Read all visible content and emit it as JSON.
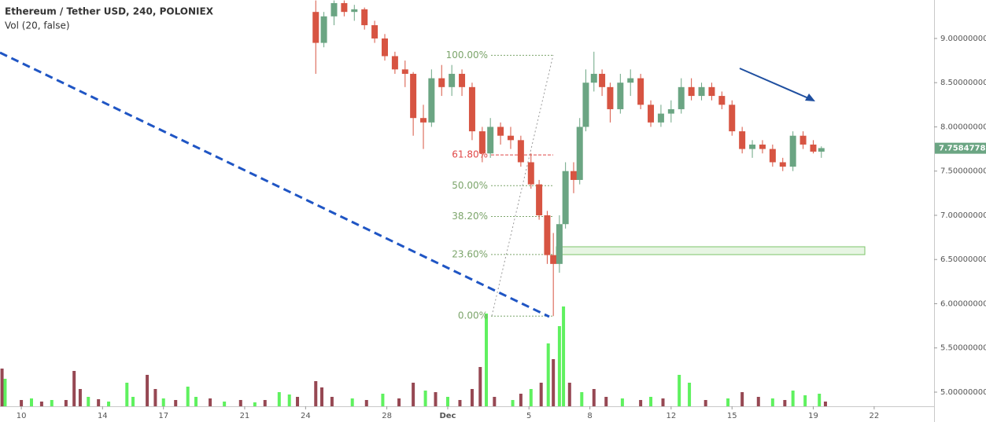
{
  "chart_data": {
    "type": "candlestick",
    "title": "Ethereum / Tether USD, 240, POLONIEX",
    "subtitle": "Vol (20, false)",
    "up_color": "#6ba583",
    "down_color": "#d75442",
    "ylim": [
      4.84,
      9.435
    ],
    "yticks": [
      {
        "value": 5,
        "label": "5.00000000"
      },
      {
        "value": 5.5,
        "label": "5.50000000"
      },
      {
        "value": 6,
        "label": "6.00000000"
      },
      {
        "value": 6.5,
        "label": "6.50000000"
      },
      {
        "value": 7,
        "label": "7.00000000"
      },
      {
        "value": 7.5,
        "label": "7.50000000"
      },
      {
        "value": 8,
        "label": "8.00000000"
      },
      {
        "value": 8.5,
        "label": "8.50000000"
      },
      {
        "value": 9,
        "label": "9.00000000"
      }
    ],
    "xlim": [
      -1.05,
      44.95
    ],
    "xticks": [
      {
        "value": 0,
        "label": "10"
      },
      {
        "value": 4,
        "label": "14"
      },
      {
        "value": 7,
        "label": "17"
      },
      {
        "value": 11,
        "label": "21"
      },
      {
        "value": 14,
        "label": "24"
      },
      {
        "value": 18,
        "label": "28"
      },
      {
        "value": 21,
        "label": "Dec"
      },
      {
        "value": 25,
        "label": "5"
      },
      {
        "value": 28,
        "label": "8"
      },
      {
        "value": 32,
        "label": "12"
      },
      {
        "value": 35,
        "label": "15"
      },
      {
        "value": 39,
        "label": "19"
      },
      {
        "value": 42,
        "label": "22"
      }
    ],
    "last_price": 7.75847788,
    "candles": {
      "x": [
        14.5,
        14.9,
        15.4,
        15.9,
        16.4,
        16.9,
        17.4,
        17.9,
        18.4,
        18.9,
        19.3,
        19.8,
        20.2,
        20.7,
        21.2,
        21.7,
        22.2,
        22.7,
        23.1,
        23.6,
        24.1,
        24.6,
        25.1,
        25.5,
        25.9,
        26.2,
        26.5,
        26.8,
        27.2,
        27.5,
        27.8,
        28.2,
        28.6,
        29.0,
        29.5,
        30.0,
        30.5,
        31.0,
        31.5,
        32.0,
        32.5,
        33.0,
        33.5,
        34.0,
        34.5,
        35.0,
        35.5,
        36.0,
        36.5,
        37.0,
        37.5,
        38.0,
        38.5,
        39.0,
        39.4
      ],
      "open": [
        9.3,
        8.95,
        9.25,
        9.4,
        9.3,
        9.33,
        9.15,
        9.0,
        8.8,
        8.65,
        8.6,
        8.1,
        8.05,
        8.55,
        8.45,
        8.6,
        8.45,
        7.95,
        7.7,
        8.0,
        7.9,
        7.85,
        7.6,
        7.35,
        7.0,
        6.55,
        6.45,
        6.9,
        7.5,
        7.4,
        8.0,
        8.5,
        8.6,
        8.45,
        8.2,
        8.5,
        8.55,
        8.25,
        8.05,
        8.15,
        8.2,
        8.45,
        8.35,
        8.45,
        8.35,
        8.25,
        7.95,
        7.75,
        7.8,
        7.75,
        7.6,
        7.55,
        7.9,
        7.8,
        7.72
      ],
      "high": [
        9.43,
        9.3,
        9.43,
        9.43,
        9.38,
        9.35,
        9.2,
        9.05,
        8.85,
        8.75,
        8.62,
        8.25,
        8.65,
        8.7,
        8.7,
        8.65,
        8.5,
        8.0,
        8.1,
        8.05,
        8.0,
        7.9,
        7.7,
        7.4,
        7.05,
        6.8,
        7.0,
        7.6,
        7.6,
        8.1,
        8.65,
        8.85,
        8.65,
        8.5,
        8.6,
        8.65,
        8.6,
        8.3,
        8.25,
        8.3,
        8.55,
        8.55,
        8.5,
        8.5,
        8.4,
        8.3,
        8.0,
        7.85,
        7.85,
        7.8,
        7.65,
        7.95,
        7.95,
        7.85,
        7.78
      ],
      "low": [
        8.6,
        8.9,
        9.15,
        9.25,
        9.2,
        9.1,
        8.95,
        8.75,
        8.6,
        8.45,
        7.9,
        7.75,
        8.0,
        8.35,
        8.35,
        8.35,
        7.85,
        7.6,
        7.65,
        7.8,
        7.75,
        7.55,
        7.3,
        6.95,
        6.45,
        5.86,
        6.35,
        6.85,
        7.25,
        7.35,
        7.95,
        8.4,
        8.35,
        8.05,
        8.15,
        8.35,
        8.2,
        8.0,
        8.0,
        8.05,
        8.15,
        8.3,
        8.3,
        8.3,
        8.2,
        7.9,
        7.7,
        7.65,
        7.7,
        7.55,
        7.5,
        7.5,
        7.75,
        7.7,
        7.65
      ],
      "close": [
        8.95,
        9.25,
        9.4,
        9.3,
        9.33,
        9.15,
        9.0,
        8.8,
        8.65,
        8.6,
        8.1,
        8.05,
        8.55,
        8.45,
        8.6,
        8.45,
        7.95,
        7.7,
        8.0,
        7.9,
        7.85,
        7.6,
        7.35,
        7.0,
        6.55,
        6.45,
        6.9,
        7.5,
        7.4,
        8.0,
        8.5,
        8.6,
        8.45,
        8.2,
        8.5,
        8.55,
        8.25,
        8.05,
        8.15,
        8.2,
        8.45,
        8.35,
        8.45,
        8.35,
        8.25,
        7.95,
        7.75,
        7.8,
        7.75,
        7.6,
        7.55,
        7.9,
        7.8,
        7.72,
        7.76
      ]
    },
    "volume": {
      "ylim": [
        0,
        150
      ],
      "up_color": "#4ef04e",
      "down_color": "#8b3440",
      "x": [
        -0.95,
        -0.8,
        0.0,
        0.5,
        1.0,
        1.5,
        2.2,
        2.6,
        2.9,
        3.3,
        3.8,
        4.3,
        5.2,
        5.5,
        6.2,
        6.6,
        7.0,
        7.6,
        8.2,
        8.6,
        9.3,
        10.0,
        10.8,
        11.5,
        12.0,
        12.7,
        13.2,
        13.6,
        14.5,
        14.8,
        15.3,
        16.3,
        17.0,
        17.8,
        18.6,
        19.3,
        19.9,
        20.4,
        21.0,
        21.6,
        22.2,
        22.6,
        22.9,
        23.3,
        24.2,
        24.6,
        25.1,
        25.6,
        25.95,
        26.2,
        26.5,
        26.7,
        27.0,
        27.6,
        28.2,
        28.8,
        29.6,
        30.5,
        31.0,
        31.6,
        32.4,
        32.9,
        33.7,
        34.8,
        35.5,
        36.3,
        37.0,
        37.6,
        38.0,
        38.6,
        39.3,
        39.6
      ],
      "values": [
        48,
        35,
        8,
        10,
        6,
        8,
        8,
        45,
        22,
        12,
        9,
        6,
        30,
        12,
        40,
        22,
        10,
        8,
        25,
        12,
        10,
        6,
        8,
        5,
        8,
        18,
        15,
        12,
        32,
        24,
        12,
        10,
        8,
        16,
        10,
        30,
        20,
        18,
        12,
        8,
        22,
        50,
        118,
        12,
        8,
        16,
        22,
        30,
        80,
        60,
        102,
        127,
        30,
        18,
        22,
        12,
        10,
        8,
        12,
        10,
        40,
        30,
        8,
        10,
        18,
        12,
        10,
        8,
        20,
        14,
        16,
        6
      ],
      "up": [
        false,
        true,
        false,
        true,
        false,
        true,
        false,
        false,
        false,
        true,
        false,
        true,
        true,
        true,
        false,
        false,
        true,
        false,
        true,
        true,
        false,
        true,
        false,
        true,
        false,
        true,
        true,
        false,
        false,
        false,
        false,
        true,
        false,
        true,
        false,
        false,
        true,
        false,
        true,
        false,
        false,
        false,
        true,
        false,
        true,
        false,
        true,
        false,
        true,
        false,
        true,
        true,
        false,
        true,
        false,
        false,
        true,
        false,
        true,
        false,
        true,
        true,
        false,
        true,
        false,
        false,
        true,
        false,
        true,
        true,
        true,
        false
      ]
    },
    "fib": {
      "low": 5.86,
      "high": 8.81,
      "levels": [
        {
          "value": 100,
          "label": "100.00%"
        },
        {
          "value": 61.8,
          "label": "61.80%"
        },
        {
          "value": 50,
          "label": "50.00%"
        },
        {
          "value": 38.2,
          "label": "38.20%"
        },
        {
          "value": 23.6,
          "label": "23.60%"
        },
        {
          "value": 0,
          "label": "0.00%"
        }
      ],
      "color": "#7ca56b",
      "key_color": "#e04848"
    }
  }
}
